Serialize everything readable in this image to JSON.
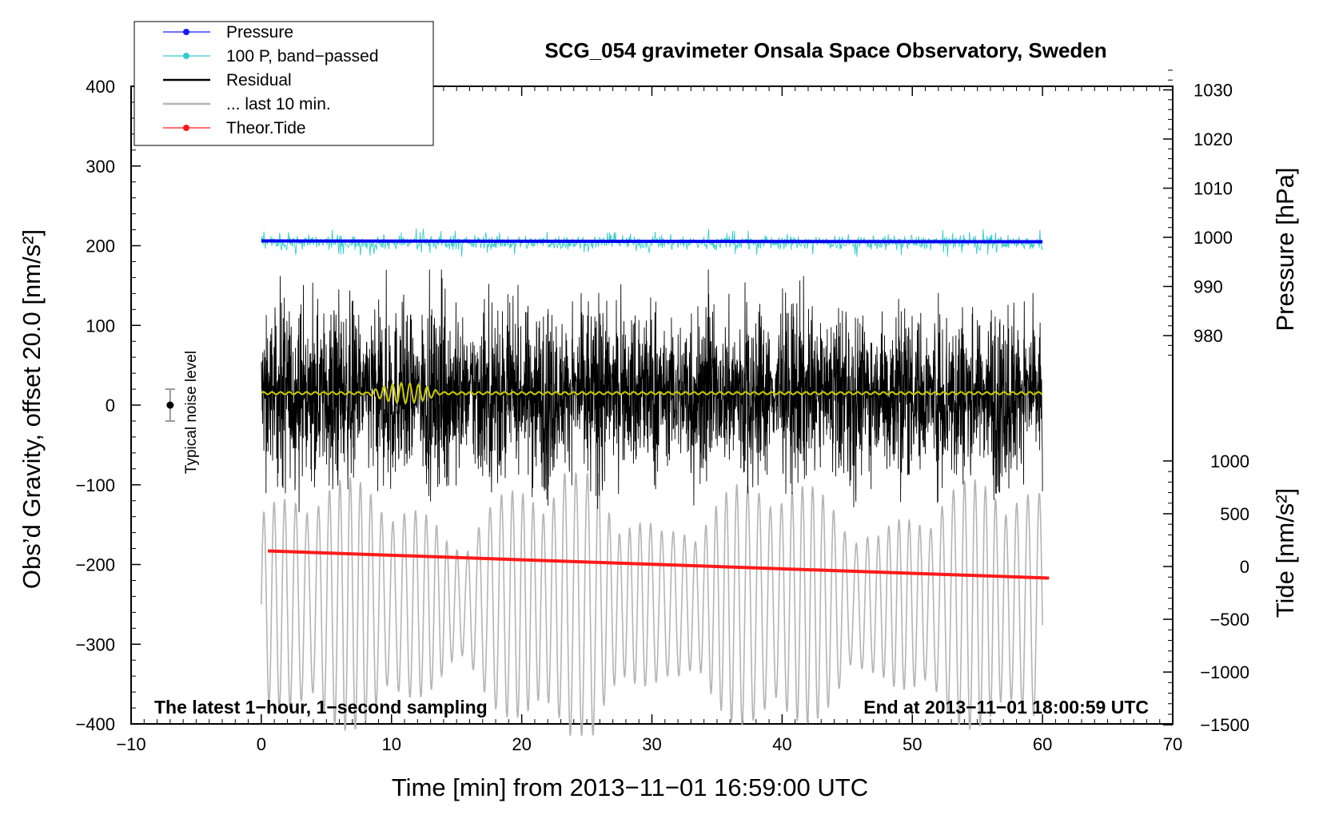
{
  "chart_data": {
    "type": "line",
    "title": "SCG_054 gravimeter Onsala Space Observatory, Sweden",
    "xlabel": "Time [min] from 2013−11−01 16:59:00 UTC",
    "ylabel_left": "Obs’d Gravity, offset 20.0 [nm/s²]",
    "ylabel_right_pressure": "Pressure [hPa]",
    "ylabel_right_tide": "Tide [nm/s²]",
    "xlim": [
      -10,
      70
    ],
    "ylim_left": [
      -400,
      400
    ],
    "x_ticks": [
      -10,
      0,
      10,
      20,
      30,
      40,
      50,
      60,
      70
    ],
    "x_tick_labels": [
      "−10",
      "0",
      "10",
      "20",
      "30",
      "40",
      "50",
      "60",
      "70"
    ],
    "y_left_ticks": [
      -400,
      -300,
      -200,
      -100,
      0,
      100,
      200,
      300,
      400
    ],
    "y_left_tick_labels": [
      "−400",
      "−300",
      "−200",
      "−100",
      "0",
      "100",
      "200",
      "300",
      "400"
    ],
    "pressure_axis": {
      "ticks": [
        980,
        990,
        1000,
        1010,
        1020,
        1030
      ],
      "tick_labels": [
        "980",
        "990",
        "1000",
        "1010",
        "1020",
        "1030"
      ]
    },
    "tide_axis": {
      "ticks": [
        -1500,
        -1000,
        -500,
        0,
        500,
        1000
      ],
      "tick_labels": [
        "−1500",
        "−1000",
        "−500",
        "0",
        "500",
        "1000"
      ]
    },
    "legend": {
      "placement": "top-left",
      "entries": [
        {
          "label": "Pressure",
          "color": "#1a1aff",
          "marker": true
        },
        {
          "label": "100 P, band−passed",
          "color": "#33cccc",
          "marker": true
        },
        {
          "label": "Residual",
          "color": "#000000",
          "marker": false
        },
        {
          "label": "... last 10 min.",
          "color": "#b4b4b4",
          "marker": false
        },
        {
          "label": "Theor.Tide",
          "color": "#ff1a1a",
          "marker": true
        }
      ]
    },
    "annotations": {
      "bottom_left": "The latest 1−hour, 1−second sampling",
      "bottom_right": "End at 2013−11−01 18:00:59 UTC",
      "noise_label": "Typical noise level"
    },
    "series": [
      {
        "name": "Pressure",
        "color": "#0000ee",
        "axis": "left",
        "x_range": [
          0,
          60
        ],
        "level": 206,
        "level_end": 205
      },
      {
        "name": "100 P, band−passed",
        "color": "#33cccc",
        "axis": "left",
        "x_range": [
          0,
          60
        ],
        "center": 204,
        "amplitude": 12
      },
      {
        "name": "Residual",
        "color": "#000000",
        "axis": "left",
        "x_range": [
          0,
          60
        ],
        "center": 15,
        "amplitude_max": 140
      },
      {
        "name": "... last 10 min.",
        "color": "#b4b4b4",
        "axis": "left",
        "x_range": [
          0,
          60
        ],
        "center": -250,
        "amplitude_max": 165
      },
      {
        "name": "Theor.Tide",
        "color": "#ff1a1a",
        "axis": "left",
        "x": [
          0.5,
          60.5
        ],
        "y": [
          -183,
          -217
        ]
      },
      {
        "color": "#cccc00",
        "axis": "left",
        "x_range": [
          0,
          60
        ],
        "center": 15,
        "amplitude": 4
      }
    ],
    "noise_bar": {
      "x": -7,
      "y": 0,
      "half_range": 20,
      "color": "#000000",
      "whisker_color": "#999999"
    },
    "grid": false
  }
}
